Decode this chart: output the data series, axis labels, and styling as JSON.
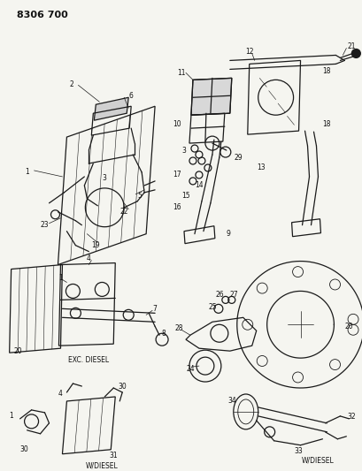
{
  "title": "8306 700",
  "bg_color": "#f5f5f0",
  "line_color": "#1a1a1a",
  "text_color": "#111111",
  "fig_width": 4.1,
  "fig_height": 5.33,
  "dpi": 100,
  "labels": {
    "exc_diesel": "EXC. DIESEL",
    "w_diesel1": "W/DIESEL",
    "w_diesel2": "W/DIESEL"
  }
}
